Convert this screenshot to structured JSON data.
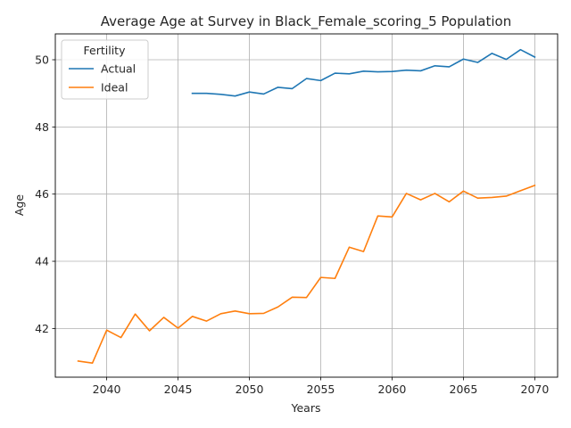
{
  "chart_data": {
    "type": "line",
    "title": "Average Age at Survey in Black_Female_scoring_5 Population",
    "xlabel": "Years",
    "ylabel": "Age",
    "xlim": [
      2036.4,
      2071.6
    ],
    "ylim": [
      40.55,
      50.77
    ],
    "x_ticks": [
      2040,
      2045,
      2050,
      2055,
      2060,
      2065,
      2070
    ],
    "x_tick_labels": [
      "2040",
      "2045",
      "2050",
      "2055",
      "2060",
      "2065",
      "2070"
    ],
    "y_ticks": [
      42,
      44,
      46,
      48,
      50
    ],
    "y_tick_labels": [
      "42",
      "44",
      "46",
      "48",
      "50"
    ],
    "grid": true,
    "legend": {
      "title": "Fertility",
      "placement": "upper-left"
    },
    "colors": {
      "Actual": "#1f77b4",
      "Ideal": "#ff7f0e"
    },
    "series": [
      {
        "name": "Actual",
        "color": "#1f77b4",
        "x": [
          2046,
          2047,
          2048,
          2049,
          2050,
          2051,
          2052,
          2053,
          2054,
          2055,
          2056,
          2057,
          2058,
          2059,
          2060,
          2061,
          2062,
          2063,
          2064,
          2065,
          2066,
          2067,
          2068,
          2069,
          2070
        ],
        "y": [
          49.0,
          49.0,
          48.97,
          48.92,
          49.04,
          48.98,
          49.18,
          49.14,
          49.44,
          49.38,
          49.6,
          49.58,
          49.66,
          49.64,
          49.65,
          49.69,
          49.67,
          49.82,
          49.79,
          50.02,
          49.92,
          50.19,
          50.01,
          50.3,
          50.08
        ]
      },
      {
        "name": "Ideal",
        "color": "#ff7f0e",
        "x": [
          2038,
          2039,
          2040,
          2041,
          2042,
          2043,
          2044,
          2045,
          2046,
          2047,
          2048,
          2049,
          2050,
          2051,
          2052,
          2053,
          2054,
          2055,
          2056,
          2057,
          2058,
          2059,
          2060,
          2061,
          2062,
          2063,
          2064,
          2065,
          2066,
          2067,
          2068,
          2069,
          2070
        ],
        "y": [
          41.03,
          40.97,
          41.95,
          41.73,
          42.43,
          41.93,
          42.33,
          42.01,
          42.36,
          42.22,
          42.44,
          42.52,
          42.44,
          42.45,
          42.64,
          42.93,
          42.92,
          43.52,
          43.49,
          44.42,
          44.29,
          45.35,
          45.32,
          46.02,
          45.83,
          46.02,
          45.77,
          46.09,
          45.88,
          45.9,
          45.94,
          46.1,
          46.26
        ]
      }
    ]
  }
}
